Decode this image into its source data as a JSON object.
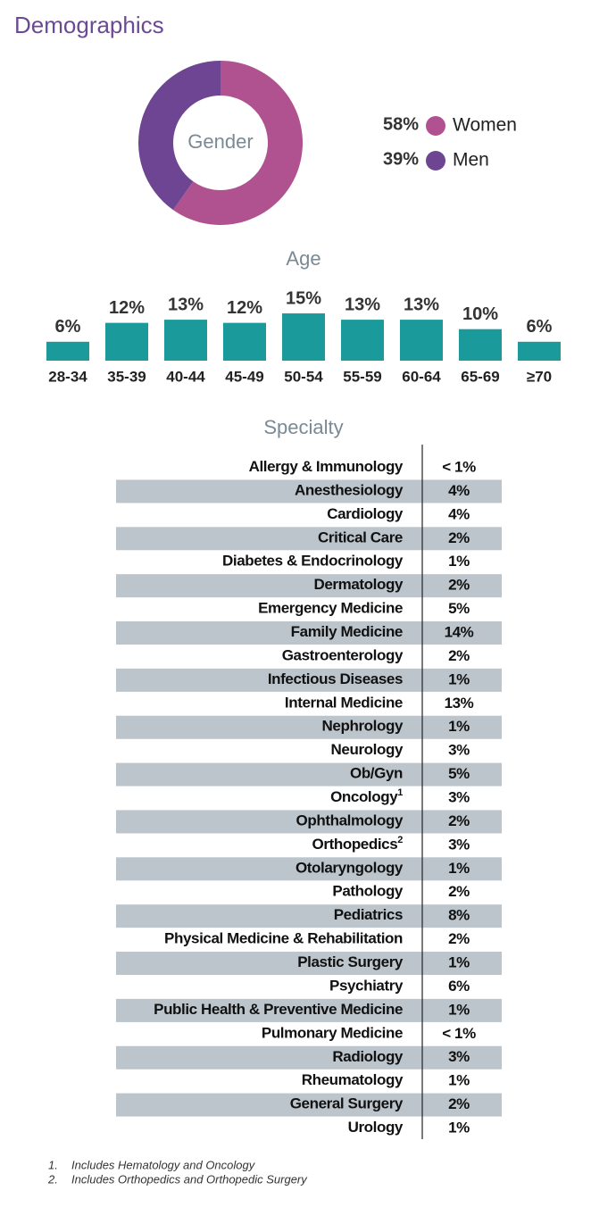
{
  "title": "Demographics",
  "chart_data": [
    {
      "type": "pie",
      "title": "Gender",
      "categories": [
        "Women",
        "Men"
      ],
      "values": [
        58,
        39
      ],
      "value_labels": [
        "58%",
        "39%"
      ],
      "colors": [
        "#b0528f",
        "#6d4592"
      ]
    },
    {
      "type": "bar",
      "title": "Age",
      "categories": [
        "28-34",
        "35-39",
        "40-44",
        "45-49",
        "50-54",
        "55-59",
        "60-64",
        "65-69",
        "≥70"
      ],
      "values": [
        6,
        12,
        13,
        12,
        15,
        13,
        13,
        10,
        6
      ],
      "value_labels": [
        "6%",
        "12%",
        "13%",
        "12%",
        "15%",
        "13%",
        "13%",
        "10%",
        "6%"
      ],
      "color": "#1a9a9a"
    },
    {
      "type": "table",
      "title": "Specialty",
      "rows": [
        {
          "label": "Allergy & Immunology",
          "value": "< 1%"
        },
        {
          "label": "Anesthesiology",
          "value": "4%"
        },
        {
          "label": "Cardiology",
          "value": "4%"
        },
        {
          "label": "Critical Care",
          "value": "2%"
        },
        {
          "label": "Diabetes & Endocrinology",
          "value": "1%"
        },
        {
          "label": "Dermatology",
          "value": "2%"
        },
        {
          "label": "Emergency Medicine",
          "value": "5%"
        },
        {
          "label": "Family Medicine",
          "value": "14%"
        },
        {
          "label": "Gastroenterology",
          "value": "2%"
        },
        {
          "label": "Infectious Diseases",
          "value": "1%"
        },
        {
          "label": "Internal Medicine",
          "value": "13%"
        },
        {
          "label": "Nephrology",
          "value": "1%"
        },
        {
          "label": "Neurology",
          "value": "3%"
        },
        {
          "label": "Ob/Gyn",
          "value": "5%"
        },
        {
          "label": "Oncology",
          "note": "1",
          "value": "3%"
        },
        {
          "label": "Ophthalmology",
          "value": "2%"
        },
        {
          "label": "Orthopedics",
          "note": "2",
          "value": "3%"
        },
        {
          "label": "Otolaryngology",
          "value": "1%"
        },
        {
          "label": "Pathology",
          "value": "2%"
        },
        {
          "label": "Pediatrics",
          "value": "8%"
        },
        {
          "label": "Physical Medicine & Rehabilitation",
          "value": "2%"
        },
        {
          "label": "Plastic Surgery",
          "value": "1%"
        },
        {
          "label": "Psychiatry",
          "value": "6%"
        },
        {
          "label": "Public Health & Preventive Medicine",
          "value": "1%"
        },
        {
          "label": "Pulmonary Medicine",
          "value": "< 1%"
        },
        {
          "label": "Radiology",
          "value": "3%"
        },
        {
          "label": "Rheumatology",
          "value": "1%"
        },
        {
          "label": "General Surgery",
          "value": "2%"
        },
        {
          "label": "Urology",
          "value": "1%"
        }
      ],
      "stripe_color": "#bcc5cc"
    }
  ],
  "footnotes": [
    {
      "mark": "1.",
      "text": "Includes Hematology and Oncology"
    },
    {
      "mark": "2.",
      "text": "Includes Orthopedics and Orthopedic Surgery"
    }
  ]
}
